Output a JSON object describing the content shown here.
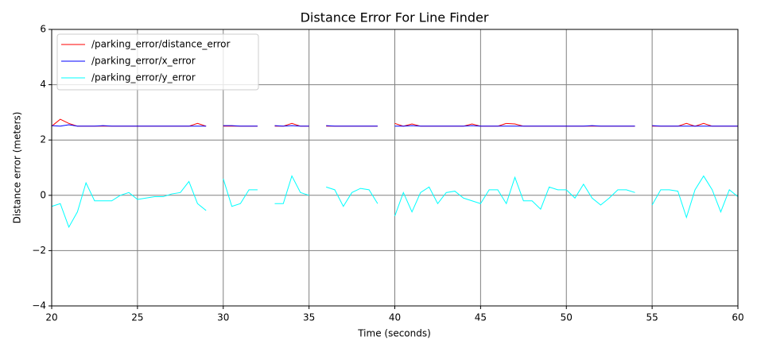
{
  "chart_data": {
    "type": "line",
    "title": "Distance Error For Line Finder",
    "x_label": "Time (seconds)",
    "y_label": "Distance error (meters)",
    "x": [
      20,
      20.5,
      21,
      21.5,
      22,
      22.5,
      23,
      23.5,
      24,
      24.5,
      25,
      25.5,
      26,
      26.5,
      27,
      27.5,
      28,
      28.5,
      29,
      29.5,
      30,
      30.5,
      31,
      31.5,
      32,
      32.5,
      33,
      33.5,
      34,
      34.5,
      35,
      35.5,
      36,
      36.5,
      37,
      37.5,
      38,
      38.5,
      39,
      39.5,
      40,
      40.5,
      41,
      41.5,
      42,
      42.5,
      43,
      43.5,
      44,
      44.5,
      45,
      45.5,
      46,
      46.5,
      47,
      47.5,
      48,
      48.5,
      49,
      49.5,
      50,
      50.5,
      51,
      51.5,
      52,
      52.5,
      53,
      53.5,
      54,
      54.5,
      55,
      55.5,
      56,
      56.5,
      57,
      57.5,
      58,
      58.5,
      59,
      59.5,
      60
    ],
    "series": [
      {
        "name": "/parking_error/distance_error",
        "color": "#ff0000",
        "values": [
          2.5,
          2.75,
          2.6,
          2.5,
          2.5,
          2.5,
          2.5,
          2.5,
          2.5,
          2.5,
          2.5,
          2.5,
          2.5,
          2.5,
          2.5,
          2.5,
          2.5,
          2.6,
          2.5,
          null,
          2.5,
          2.5,
          2.5,
          2.5,
          2.5,
          null,
          2.5,
          2.5,
          2.6,
          2.5,
          2.5,
          null,
          2.5,
          2.5,
          2.5,
          2.5,
          2.5,
          2.5,
          2.5,
          null,
          2.6,
          2.5,
          2.58,
          2.5,
          2.5,
          2.5,
          2.5,
          2.5,
          2.5,
          2.58,
          2.5,
          2.5,
          2.5,
          2.6,
          2.58,
          2.5,
          2.5,
          2.5,
          2.5,
          2.5,
          2.5,
          2.5,
          2.5,
          2.5,
          2.5,
          2.5,
          2.5,
          2.5,
          2.5,
          null,
          2.5,
          2.5,
          2.5,
          2.5,
          2.6,
          2.5,
          2.6,
          2.5,
          2.5,
          2.5,
          2.5
        ]
      },
      {
        "name": "/parking_error/x_error",
        "color": "#0000ff",
        "values": [
          2.52,
          2.5,
          2.55,
          2.5,
          2.5,
          2.5,
          2.52,
          2.5,
          2.5,
          2.5,
          2.5,
          2.5,
          2.5,
          2.5,
          2.5,
          2.5,
          2.5,
          2.5,
          2.5,
          null,
          2.52,
          2.52,
          2.5,
          2.5,
          2.5,
          null,
          2.52,
          2.5,
          2.52,
          2.5,
          2.5,
          null,
          2.52,
          2.5,
          2.5,
          2.5,
          2.5,
          2.5,
          2.5,
          null,
          2.5,
          2.5,
          2.52,
          2.5,
          2.5,
          2.5,
          2.5,
          2.5,
          2.5,
          2.52,
          2.5,
          2.5,
          2.5,
          2.5,
          2.5,
          2.5,
          2.5,
          2.5,
          2.5,
          2.5,
          2.5,
          2.5,
          2.5,
          2.52,
          2.5,
          2.5,
          2.5,
          2.5,
          2.5,
          null,
          2.52,
          2.5,
          2.5,
          2.5,
          2.5,
          2.5,
          2.5,
          2.5,
          2.5,
          2.5,
          2.5
        ]
      },
      {
        "name": "/parking_error/y_error",
        "color": "#00ffff",
        "values": [
          -0.4,
          -0.3,
          -1.15,
          -0.6,
          0.45,
          -0.2,
          -0.2,
          -0.2,
          0,
          0.1,
          -0.15,
          -0.1,
          -0.05,
          -0.05,
          0.05,
          0.1,
          0.5,
          -0.3,
          -0.55,
          null,
          0.6,
          -0.4,
          -0.3,
          0.2,
          0.2,
          null,
          -0.3,
          -0.3,
          0.7,
          0.1,
          0,
          null,
          0.3,
          0.2,
          -0.4,
          0.1,
          0.25,
          0.2,
          -0.3,
          null,
          -0.75,
          0.1,
          -0.6,
          0.1,
          0.3,
          -0.3,
          0.1,
          0.15,
          -0.1,
          -0.2,
          -0.3,
          0.2,
          0.2,
          -0.3,
          0.65,
          -0.2,
          -0.2,
          -0.5,
          0.3,
          0.2,
          0.2,
          -0.1,
          0.4,
          -0.1,
          -0.35,
          -0.1,
          0.2,
          0.2,
          0.1,
          null,
          -0.35,
          0.2,
          0.2,
          0.15,
          -0.8,
          0.2,
          0.7,
          0.2,
          -0.6,
          0.2,
          -0.05
        ]
      }
    ],
    "xlim": [
      20,
      60
    ],
    "xticks": [
      20,
      25,
      30,
      35,
      40,
      45,
      50,
      55,
      60
    ],
    "ylim": [
      -4,
      6
    ],
    "yticks": [
      {
        "value": -4,
        "label": "−4"
      },
      {
        "value": -2,
        "label": "−2"
      },
      0,
      2,
      4,
      6
    ],
    "grid": true,
    "legend": "upper left"
  }
}
